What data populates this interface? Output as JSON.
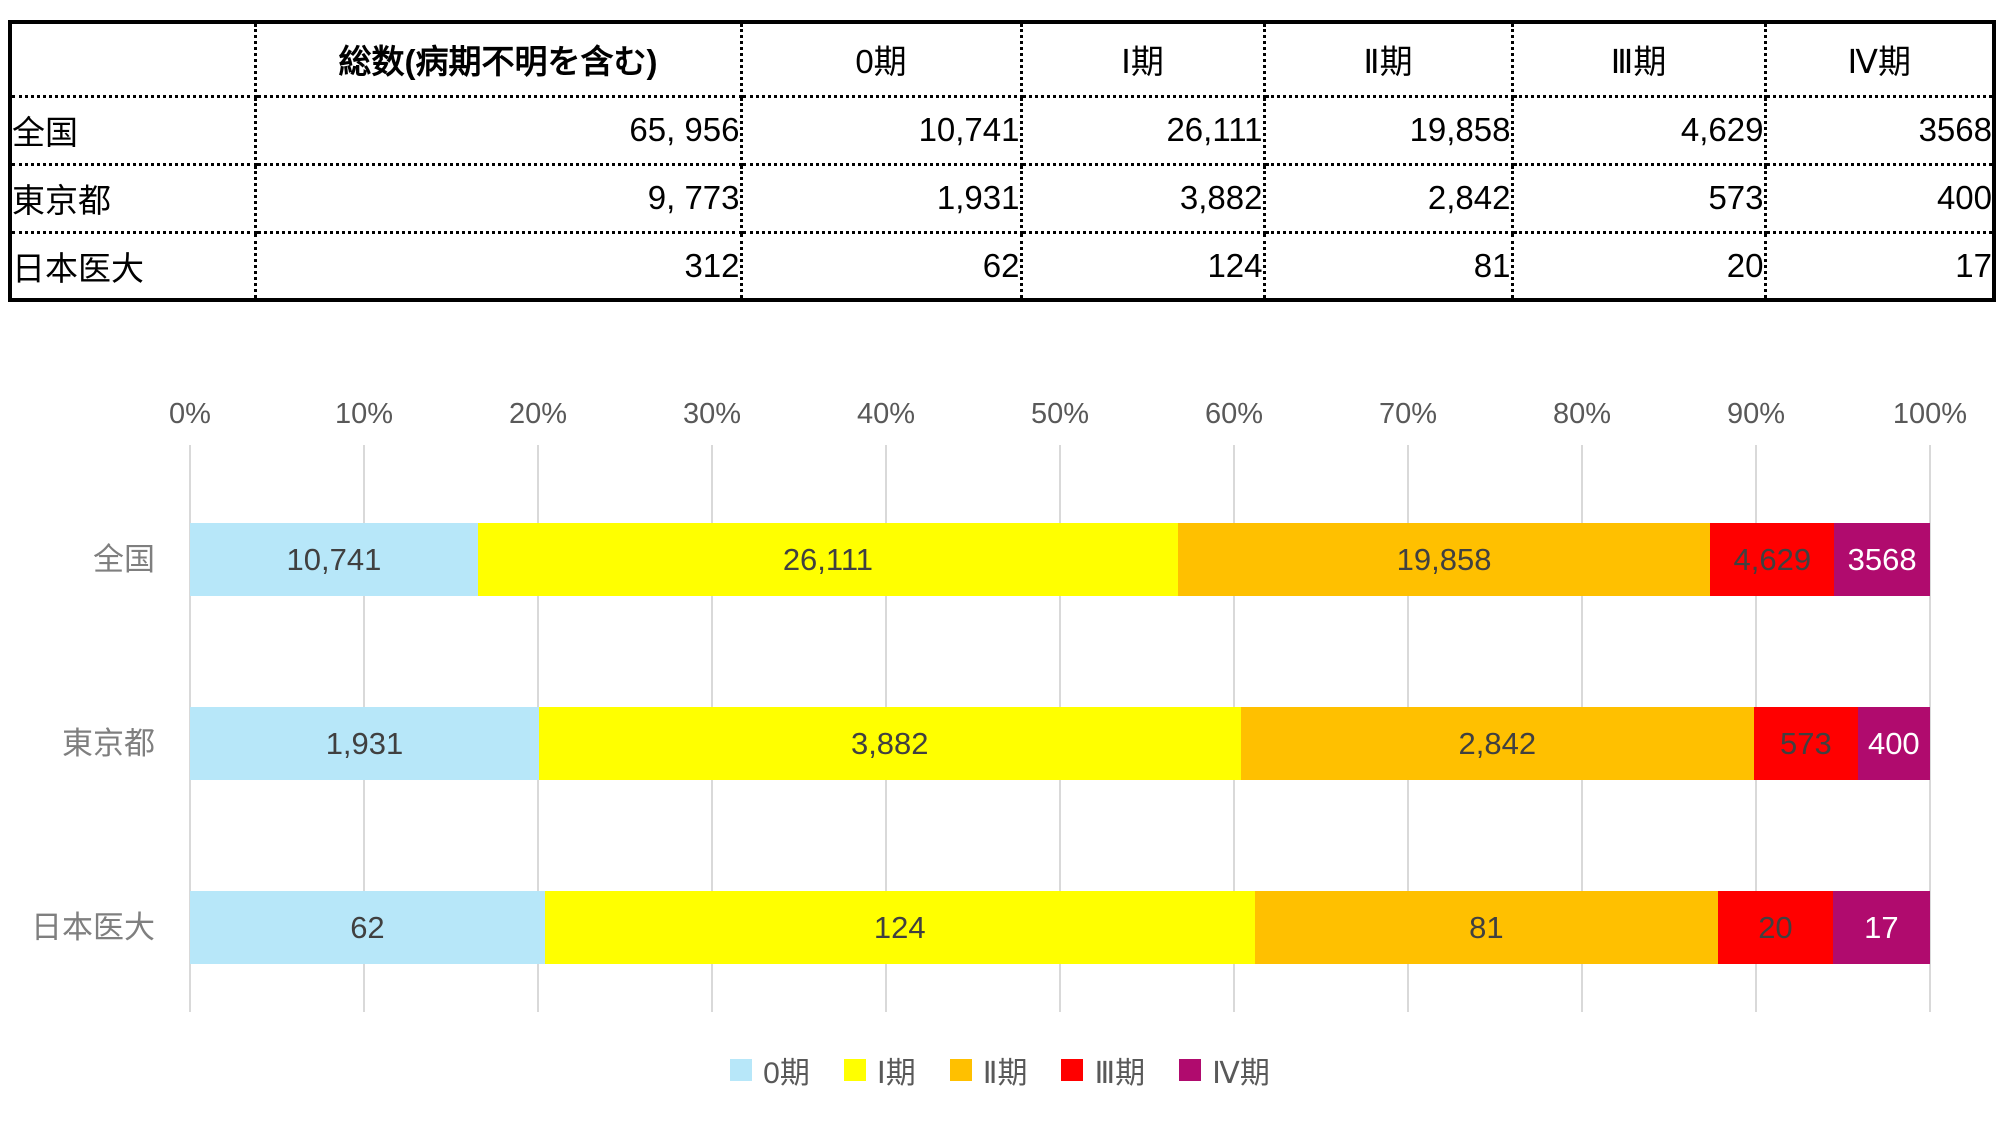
{
  "table": {
    "header": [
      "",
      "総数(病期不明を含む)",
      "0期",
      "Ⅰ期",
      "Ⅱ期",
      "Ⅲ期",
      "Ⅳ期"
    ],
    "rows": [
      {
        "label": "全国",
        "values": [
          "65, 956",
          "10,741",
          "26,111",
          "19,858",
          "4,629",
          "3568"
        ]
      },
      {
        "label": "東京都",
        "values": [
          "9, 773",
          "1,931",
          "3,882",
          "2,842",
          "573",
          "400"
        ]
      },
      {
        "label": "日本医大",
        "values": [
          "312",
          "62",
          "124",
          "81",
          "20",
          "17"
        ]
      }
    ]
  },
  "chart_data": {
    "type": "bar",
    "variant": "100-percent-stacked-horizontal",
    "categories": [
      "全国",
      "東京都",
      "日本医大"
    ],
    "series": [
      {
        "name": "0期",
        "color": "#B7E7F9",
        "values": [
          10741,
          1931,
          62
        ],
        "labels": [
          "10,741",
          "1,931",
          "62"
        ],
        "label_color": "#404040"
      },
      {
        "name": "Ⅰ期",
        "color": "#FFFF00",
        "values": [
          26111,
          3882,
          124
        ],
        "labels": [
          "26,111",
          "3,882",
          "124"
        ],
        "label_color": "#404040"
      },
      {
        "name": "Ⅱ期",
        "color": "#FFC000",
        "values": [
          19858,
          2842,
          81
        ],
        "labels": [
          "19,858",
          "2,842",
          "81"
        ],
        "label_color": "#404040"
      },
      {
        "name": "Ⅲ期",
        "color": "#FF0000",
        "values": [
          4629,
          573,
          20
        ],
        "labels": [
          "4,629",
          "573",
          "20"
        ],
        "label_color": "#404040"
      },
      {
        "name": "Ⅳ期",
        "color": "#B00B6E",
        "values": [
          3568,
          400,
          17
        ],
        "labels": [
          "3568",
          "400",
          "17"
        ],
        "label_color": "#FFFFFF"
      }
    ],
    "x_axis": {
      "position": "top",
      "min": 0,
      "max": 100,
      "ticks": [
        "0%",
        "10%",
        "20%",
        "30%",
        "40%",
        "50%",
        "60%",
        "70%",
        "80%",
        "90%",
        "100%"
      ]
    },
    "grid": true,
    "legend": {
      "position": "bottom",
      "items": [
        "0期",
        "Ⅰ期",
        "Ⅱ期",
        "Ⅲ期",
        "Ⅳ期"
      ]
    },
    "style": {
      "gridline_color": "#D9D9D9",
      "axis_text_color": "#595959",
      "category_text_color": "#7F7F7F",
      "bar_label_color": "#404040"
    }
  }
}
